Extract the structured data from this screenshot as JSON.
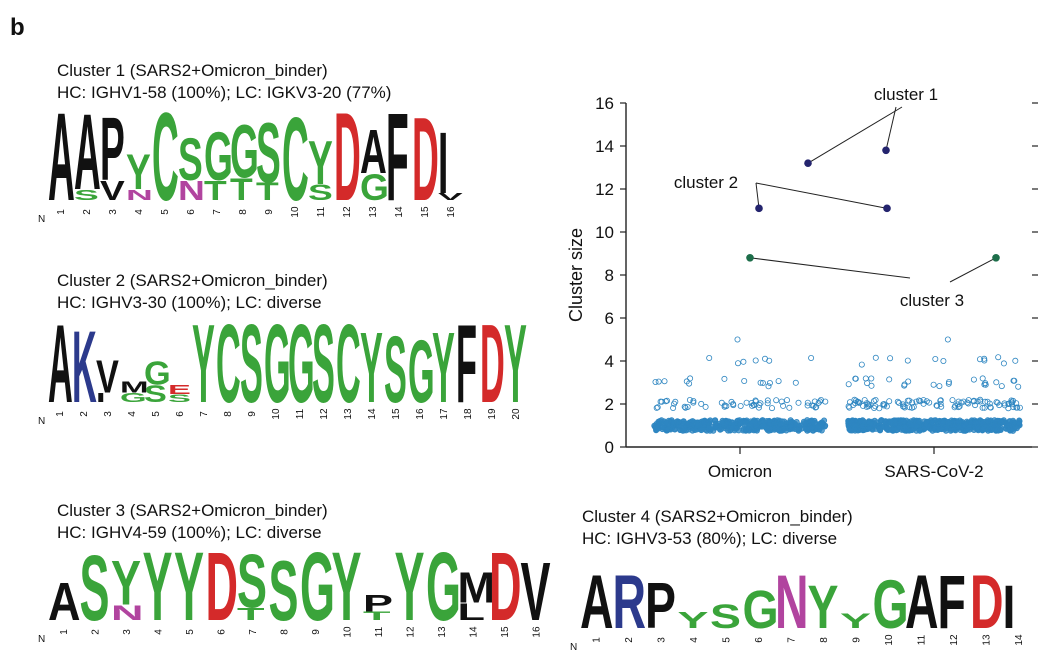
{
  "panel_label": "b",
  "colors": {
    "hydrophobic": "#111111",
    "polar": "#3aa43a",
    "acidic": "#d42a2a",
    "basic": "#2c3a8c",
    "amide": "#b1449f",
    "point_outline": "#2e86c1",
    "point_fill": "#2e86c1",
    "cluster_12": "#24246e",
    "cluster_3": "#1d6e4a"
  },
  "clusters": [
    {
      "title": "Cluster 1 (SARS2+Omicron_binder)",
      "subtitle": "HC: IGHV1-58 (100%); LC: IGKV3-20 (77%)",
      "n_label": "N",
      "positions": [
        "1",
        "2",
        "3",
        "4",
        "5",
        "6",
        "7",
        "8",
        "9",
        "10",
        "11",
        "12",
        "13",
        "14",
        "15",
        "16"
      ],
      "letters": [
        {
          "pos": 1,
          "aa": "A",
          "h": 1.0
        },
        {
          "pos": 2,
          "aa": "A",
          "h": 0.86
        },
        {
          "pos": 2,
          "aa": "S",
          "h": 0.12
        },
        {
          "pos": 3,
          "aa": "P",
          "h": 0.72
        },
        {
          "pos": 3,
          "aa": "V",
          "h": 0.22
        },
        {
          "pos": 4,
          "aa": "Y",
          "h": 0.4
        },
        {
          "pos": 4,
          "aa": "N",
          "h": 0.12
        },
        {
          "pos": 5,
          "aa": "C",
          "h": 1.0
        },
        {
          "pos": 6,
          "aa": "S",
          "h": 0.48
        },
        {
          "pos": 6,
          "aa": "N",
          "h": 0.22
        },
        {
          "pos": 7,
          "aa": "G",
          "h": 0.55
        },
        {
          "pos": 7,
          "aa": "T",
          "h": 0.22
        },
        {
          "pos": 8,
          "aa": "G",
          "h": 0.6
        },
        {
          "pos": 8,
          "aa": "T",
          "h": 0.25
        },
        {
          "pos": 9,
          "aa": "S",
          "h": 0.68
        },
        {
          "pos": 9,
          "aa": "T",
          "h": 0.2
        },
        {
          "pos": 10,
          "aa": "C",
          "h": 0.95
        },
        {
          "pos": 11,
          "aa": "Y",
          "h": 0.5
        },
        {
          "pos": 11,
          "aa": "S",
          "h": 0.18
        },
        {
          "pos": 12,
          "aa": "D",
          "h": 1.0
        },
        {
          "pos": 13,
          "aa": "A",
          "h": 0.5
        },
        {
          "pos": 13,
          "aa": "G",
          "h": 0.3
        },
        {
          "pos": 14,
          "aa": "F",
          "h": 1.0
        },
        {
          "pos": 15,
          "aa": "D",
          "h": 0.95
        },
        {
          "pos": 16,
          "aa": "I",
          "h": 0.7
        },
        {
          "pos": 16,
          "aa": "V",
          "h": 0.08
        }
      ]
    },
    {
      "title": "Cluster 2 (SARS2+Omicron_binder)",
      "subtitle": "HC: IGHV3-30 (100%); LC: diverse",
      "n_label": "N",
      "positions": [
        "1",
        "2",
        "3",
        "4",
        "5",
        "6",
        "7",
        "8",
        "9",
        "10",
        "11",
        "12",
        "13",
        "14",
        "15",
        "16",
        "17",
        "18",
        "19",
        "20"
      ],
      "letters": [
        {
          "pos": 1,
          "aa": "A",
          "h": 1.0
        },
        {
          "pos": 2,
          "aa": "K",
          "h": 0.92
        },
        {
          "pos": 3,
          "aa": "V",
          "h": 0.42
        },
        {
          "pos": 3,
          "aa": "I",
          "h": 0.12
        },
        {
          "pos": 4,
          "aa": "G",
          "h": 0.12
        },
        {
          "pos": 4,
          "aa": "M",
          "h": 0.14
        },
        {
          "pos": 5,
          "aa": "G",
          "h": 0.3
        },
        {
          "pos": 5,
          "aa": "S",
          "h": 0.22
        },
        {
          "pos": 6,
          "aa": "E",
          "h": 0.12
        },
        {
          "pos": 6,
          "aa": "S",
          "h": 0.1
        },
        {
          "pos": 7,
          "aa": "Y",
          "h": 1.0
        },
        {
          "pos": 8,
          "aa": "C",
          "h": 1.0
        },
        {
          "pos": 9,
          "aa": "S",
          "h": 1.0
        },
        {
          "pos": 10,
          "aa": "G",
          "h": 1.0
        },
        {
          "pos": 11,
          "aa": "G",
          "h": 1.0
        },
        {
          "pos": 12,
          "aa": "S",
          "h": 1.0
        },
        {
          "pos": 13,
          "aa": "C",
          "h": 1.0
        },
        {
          "pos": 14,
          "aa": "Y",
          "h": 0.9
        },
        {
          "pos": 15,
          "aa": "S",
          "h": 0.85
        },
        {
          "pos": 16,
          "aa": "G",
          "h": 0.8
        },
        {
          "pos": 17,
          "aa": "Y",
          "h": 0.9
        },
        {
          "pos": 18,
          "aa": "F",
          "h": 1.0
        },
        {
          "pos": 19,
          "aa": "D",
          "h": 1.0
        },
        {
          "pos": 20,
          "aa": "Y",
          "h": 1.0
        }
      ]
    },
    {
      "title": "Cluster 3 (SARS2+Omicron_binder)",
      "subtitle": "HC: IGHV4-59 (100%); LC: diverse",
      "n_label": "N",
      "positions": [
        "1",
        "2",
        "3",
        "4",
        "5",
        "6",
        "7",
        "8",
        "9",
        "10",
        "11",
        "12",
        "13",
        "14",
        "15",
        "16"
      ],
      "letters": [
        {
          "pos": 1,
          "aa": "A",
          "h": 0.55
        },
        {
          "pos": 2,
          "aa": "S",
          "h": 0.95
        },
        {
          "pos": 3,
          "aa": "Y",
          "h": 0.65
        },
        {
          "pos": 3,
          "aa": "N",
          "h": 0.22
        },
        {
          "pos": 4,
          "aa": "Y",
          "h": 1.0
        },
        {
          "pos": 5,
          "aa": "Y",
          "h": 1.0
        },
        {
          "pos": 6,
          "aa": "D",
          "h": 1.0
        },
        {
          "pos": 7,
          "aa": "S",
          "h": 0.78
        },
        {
          "pos": 7,
          "aa": "T",
          "h": 0.18
        },
        {
          "pos": 8,
          "aa": "S",
          "h": 0.88
        },
        {
          "pos": 9,
          "aa": "G",
          "h": 1.0
        },
        {
          "pos": 10,
          "aa": "Y",
          "h": 1.0
        },
        {
          "pos": 11,
          "aa": "P",
          "h": 0.25
        },
        {
          "pos": 11,
          "aa": "T",
          "h": 0.12
        },
        {
          "pos": 12,
          "aa": "Y",
          "h": 1.0
        },
        {
          "pos": 13,
          "aa": "G",
          "h": 1.0
        },
        {
          "pos": 14,
          "aa": "M",
          "h": 0.45
        },
        {
          "pos": 14,
          "aa": "L",
          "h": 0.25
        },
        {
          "pos": 15,
          "aa": "D",
          "h": 1.0
        },
        {
          "pos": 16,
          "aa": "V",
          "h": 0.85
        }
      ]
    },
    {
      "title": "Cluster 4 (SARS2+Omicron_binder)",
      "subtitle": "HC: IGHV3-53 (80%); LC: diverse",
      "n_label": "N",
      "positions": [
        "1",
        "2",
        "3",
        "4",
        "5",
        "6",
        "7",
        "8",
        "9",
        "10",
        "11",
        "12",
        "13",
        "14"
      ],
      "letters": [
        {
          "pos": 1,
          "aa": "A",
          "h": 1.0
        },
        {
          "pos": 2,
          "aa": "R",
          "h": 1.0
        },
        {
          "pos": 3,
          "aa": "P",
          "h": 0.85
        },
        {
          "pos": 4,
          "aa": "Y",
          "h": 0.3
        },
        {
          "pos": 5,
          "aa": "S",
          "h": 0.45
        },
        {
          "pos": 6,
          "aa": "G",
          "h": 0.7
        },
        {
          "pos": 7,
          "aa": "N",
          "h": 1.0
        },
        {
          "pos": 8,
          "aa": "Y",
          "h": 0.8
        },
        {
          "pos": 9,
          "aa": "Y",
          "h": 0.28
        },
        {
          "pos": 10,
          "aa": "G",
          "h": 0.9
        },
        {
          "pos": 11,
          "aa": "A",
          "h": 1.0
        },
        {
          "pos": 12,
          "aa": "F",
          "h": 1.0
        },
        {
          "pos": 13,
          "aa": "D",
          "h": 1.0
        },
        {
          "pos": 14,
          "aa": "I",
          "h": 0.8
        }
      ]
    }
  ],
  "chart_data": {
    "type": "scatter",
    "title": "",
    "xlabel": "",
    "ylabel": "Cluster size",
    "ylim": [
      0,
      16
    ],
    "yticks": [
      0,
      2,
      4,
      6,
      8,
      10,
      12,
      14,
      16
    ],
    "categories": [
      "Omicron",
      "SARS-CoV-2"
    ],
    "background_points": {
      "description_values": "jittered open circles of cluster sizes per category",
      "Omicron": {
        "size_1_count": 420,
        "size_2_count": 55,
        "size_3_count": 14,
        "size_4_count": 7,
        "max_value": 5
      },
      "SARS-CoV-2": {
        "size_1_count": 560,
        "size_2_count": 95,
        "size_3_count": 25,
        "size_4_count": 12,
        "max_value": 5
      }
    },
    "highlighted_points": [
      {
        "category": "Omicron",
        "y": 13.2,
        "cluster": "cluster 1"
      },
      {
        "category": "SARS-CoV-2",
        "y": 13.8,
        "cluster": "cluster 1"
      },
      {
        "category": "Omicron",
        "y": 11.1,
        "cluster": "cluster 2"
      },
      {
        "category": "SARS-CoV-2",
        "y": 11.1,
        "cluster": "cluster 2"
      },
      {
        "category": "Omicron",
        "y": 8.8,
        "cluster": "cluster 3"
      },
      {
        "category": "SARS-CoV-2",
        "y": 8.8,
        "cluster": "cluster 3"
      }
    ],
    "annotations": [
      {
        "label": "cluster 1",
        "points": [
          0,
          1
        ]
      },
      {
        "label": "cluster 2",
        "points": [
          2,
          3
        ]
      },
      {
        "label": "cluster 3",
        "points": [
          4,
          5
        ]
      }
    ]
  }
}
